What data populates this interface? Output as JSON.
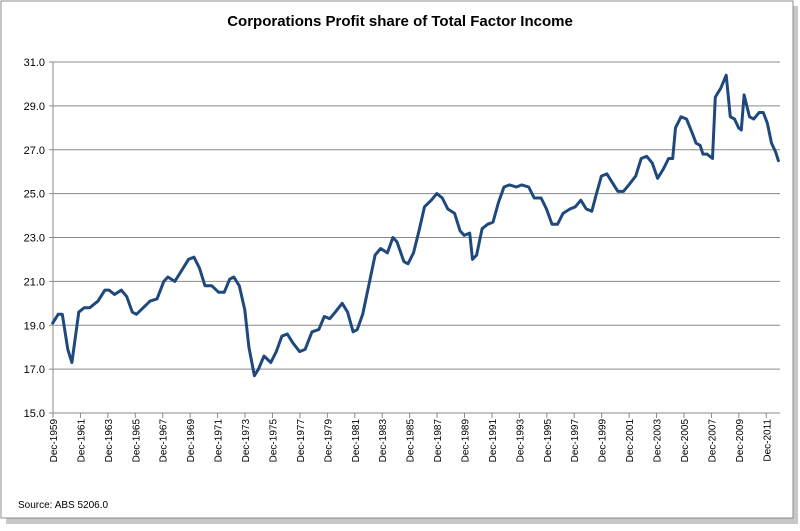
{
  "chart_data": {
    "type": "line",
    "title": "Corporations Profit share of Total Factor Income",
    "source": "Source: ABS 5206.0",
    "grid": true,
    "xlim": [
      1959.92,
      2012.92
    ],
    "ylim": [
      15,
      31
    ],
    "yticks": [
      {
        "value": 15,
        "label": "15.0"
      },
      {
        "value": 17,
        "label": "17.0"
      },
      {
        "value": 19,
        "label": "19.0"
      },
      {
        "value": 21,
        "label": "21.0"
      },
      {
        "value": 23,
        "label": "23.0"
      },
      {
        "value": 25,
        "label": "25.0"
      },
      {
        "value": 27,
        "label": "27.0"
      },
      {
        "value": 29,
        "label": "29.0"
      },
      {
        "value": 31,
        "label": "31.0"
      }
    ],
    "xticks": [
      {
        "value": 1959.92,
        "label": "Dec-1959"
      },
      {
        "value": 1961.92,
        "label": "Dec-1961"
      },
      {
        "value": 1963.92,
        "label": "Dec-1963"
      },
      {
        "value": 1965.92,
        "label": "Dec-1965"
      },
      {
        "value": 1967.92,
        "label": "Dec-1967"
      },
      {
        "value": 1969.92,
        "label": "Dec-1969"
      },
      {
        "value": 1971.92,
        "label": "Dec-1971"
      },
      {
        "value": 1973.92,
        "label": "Dec-1973"
      },
      {
        "value": 1975.92,
        "label": "Dec-1975"
      },
      {
        "value": 1977.92,
        "label": "Dec-1977"
      },
      {
        "value": 1979.92,
        "label": "Dec-1979"
      },
      {
        "value": 1981.92,
        "label": "Dec-1981"
      },
      {
        "value": 1983.92,
        "label": "Dec-1983"
      },
      {
        "value": 1985.92,
        "label": "Dec-1985"
      },
      {
        "value": 1987.92,
        "label": "Dec-1987"
      },
      {
        "value": 1989.92,
        "label": "Dec-1989"
      },
      {
        "value": 1991.92,
        "label": "Dec-1991"
      },
      {
        "value": 1993.92,
        "label": "Dec-1993"
      },
      {
        "value": 1995.92,
        "label": "Dec-1995"
      },
      {
        "value": 1997.92,
        "label": "Dec-1997"
      },
      {
        "value": 1999.92,
        "label": "Dec-1999"
      },
      {
        "value": 2001.92,
        "label": "Dec-2001"
      },
      {
        "value": 2003.92,
        "label": "Dec-2003"
      },
      {
        "value": 2005.92,
        "label": "Dec-2005"
      },
      {
        "value": 2007.92,
        "label": "Dec-2007"
      },
      {
        "value": 2009.92,
        "label": "Dec-2009"
      },
      {
        "value": 2011.92,
        "label": "Dec-2011"
      }
    ],
    "x": [
      1959.9,
      1960.3,
      1960.6,
      1961.0,
      1961.3,
      1961.8,
      1962.2,
      1962.6,
      1963.2,
      1963.7,
      1964.0,
      1964.4,
      1964.9,
      1965.3,
      1965.7,
      1966.0,
      1966.5,
      1967.0,
      1967.5,
      1968.0,
      1968.3,
      1968.8,
      1969.3,
      1969.8,
      1970.2,
      1970.6,
      1971.0,
      1971.5,
      1972.0,
      1972.4,
      1972.8,
      1973.1,
      1973.5,
      1973.9,
      1974.2,
      1974.6,
      1974.9,
      1975.3,
      1975.8,
      1976.2,
      1976.6,
      1977.0,
      1977.4,
      1977.9,
      1978.3,
      1978.8,
      1979.3,
      1979.7,
      1980.1,
      1980.5,
      1981.0,
      1981.4,
      1981.8,
      1982.1,
      1982.5,
      1983.0,
      1983.4,
      1983.8,
      1984.3,
      1984.7,
      1985.0,
      1985.5,
      1985.8,
      1986.2,
      1986.6,
      1987.0,
      1987.5,
      1987.9,
      1988.3,
      1988.7,
      1989.2,
      1989.6,
      1989.9,
      1990.3,
      1990.5,
      1990.8,
      1991.2,
      1991.6,
      1992.0,
      1992.4,
      1992.8,
      1993.2,
      1993.7,
      1994.1,
      1994.6,
      1995.0,
      1995.5,
      1995.9,
      1996.3,
      1996.7,
      1997.1,
      1997.6,
      1998.0,
      1998.4,
      1998.8,
      1999.2,
      1999.5,
      1999.9,
      2000.3,
      2000.7,
      2001.1,
      2001.5,
      2001.9,
      2002.4,
      2002.8,
      2003.2,
      2003.6,
      2004.0,
      2004.4,
      2004.8,
      2005.1,
      2005.3,
      2005.7,
      2006.1,
      2006.5,
      2006.8,
      2007.1,
      2007.3,
      2007.6,
      2008.0,
      2008.2,
      2008.6,
      2009.0,
      2009.3,
      2009.6,
      2009.9,
      2010.1,
      2010.3,
      2010.7,
      2011.0,
      2011.4,
      2011.7,
      2012.0,
      2012.3,
      2012.6,
      2012.8
    ],
    "series": [
      {
        "color": "#1f497d",
        "values": [
          19.1,
          19.5,
          19.5,
          17.9,
          17.3,
          19.6,
          19.8,
          19.8,
          20.1,
          20.6,
          20.6,
          20.4,
          20.6,
          20.3,
          19.6,
          19.5,
          19.8,
          20.1,
          20.2,
          21.0,
          21.2,
          21.0,
          21.5,
          22.0,
          22.1,
          21.6,
          20.8,
          20.8,
          20.5,
          20.5,
          21.1,
          21.2,
          20.8,
          19.7,
          18.0,
          16.7,
          17.0,
          17.6,
          17.3,
          17.8,
          18.5,
          18.6,
          18.2,
          17.8,
          17.9,
          18.7,
          18.8,
          19.4,
          19.3,
          19.6,
          20.0,
          19.6,
          18.7,
          18.8,
          19.5,
          21.0,
          22.2,
          22.5,
          22.3,
          23.0,
          22.8,
          21.9,
          21.8,
          22.3,
          23.3,
          24.4,
          24.7,
          25.0,
          24.8,
          24.3,
          24.1,
          23.3,
          23.1,
          23.2,
          22.0,
          22.2,
          23.4,
          23.6,
          23.7,
          24.6,
          25.3,
          25.4,
          25.3,
          25.4,
          25.3,
          24.8,
          24.8,
          24.3,
          23.6,
          23.6,
          24.1,
          24.3,
          24.4,
          24.7,
          24.3,
          24.2,
          24.9,
          25.8,
          25.9,
          25.5,
          25.1,
          25.1,
          25.4,
          25.8,
          26.6,
          26.7,
          26.4,
          25.7,
          26.1,
          26.6,
          26.6,
          28.0,
          28.5,
          28.4,
          27.8,
          27.3,
          27.2,
          26.8,
          26.8,
          26.6,
          29.4,
          29.8,
          30.4,
          28.5,
          28.4,
          28.0,
          27.9,
          29.5,
          28.5,
          28.4,
          28.7,
          28.7,
          28.2,
          27.3,
          26.9,
          26.5
        ]
      }
    ]
  }
}
